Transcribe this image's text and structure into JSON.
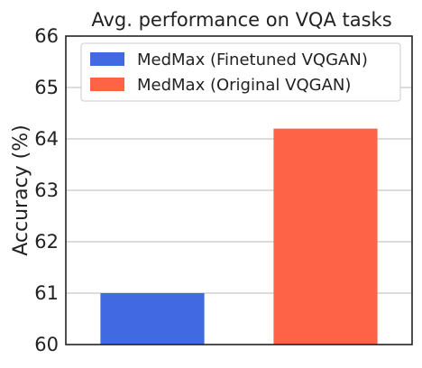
{
  "chart_data": {
    "type": "bar",
    "title": "Avg. performance on VQA tasks",
    "ylabel": "Accuracy (%)",
    "xlabel": "",
    "ylim": [
      60,
      66
    ],
    "yticks": [
      "60",
      "61",
      "62",
      "63",
      "64",
      "65",
      "66"
    ],
    "grid": true,
    "legend_position": "top",
    "series": [
      {
        "name": "MedMax (Finetuned VQGAN)",
        "value": 61.0,
        "color": "#4169e1"
      },
      {
        "name": "MedMax (Original VQGAN)",
        "value": 64.2,
        "color": "#ff6347"
      }
    ]
  }
}
